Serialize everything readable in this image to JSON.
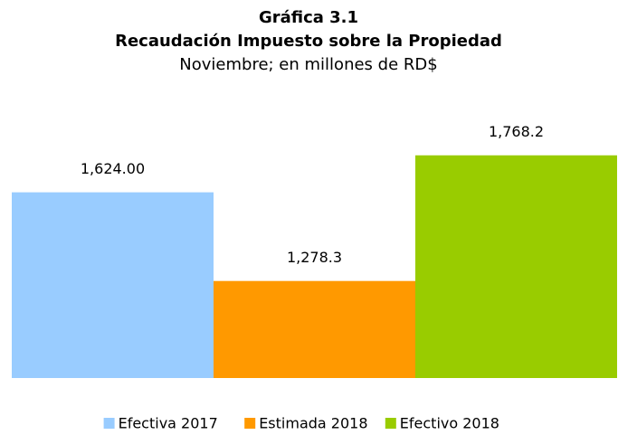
{
  "chart_data": {
    "type": "bar",
    "title": "Gráfica 3.1",
    "subtitle": "Recaudación Impuesto sobre la Propiedad",
    "note": "Noviembre; en millones de RD$",
    "ylim": [
      900,
      2000
    ],
    "series": [
      {
        "name": "Efectiva 2017",
        "color": "#99ccff",
        "values": [
          1624
        ],
        "value_labels": [
          "1,624.00"
        ]
      },
      {
        "name": "Estimada 2018",
        "color": "#ff9900",
        "values": [
          1278.3
        ],
        "value_labels": [
          "1,278.3"
        ]
      },
      {
        "name": "Efectivo 2018",
        "color": "#99cc00",
        "values": [
          1768.2
        ],
        "value_labels": [
          "1,768.2"
        ]
      }
    ]
  }
}
